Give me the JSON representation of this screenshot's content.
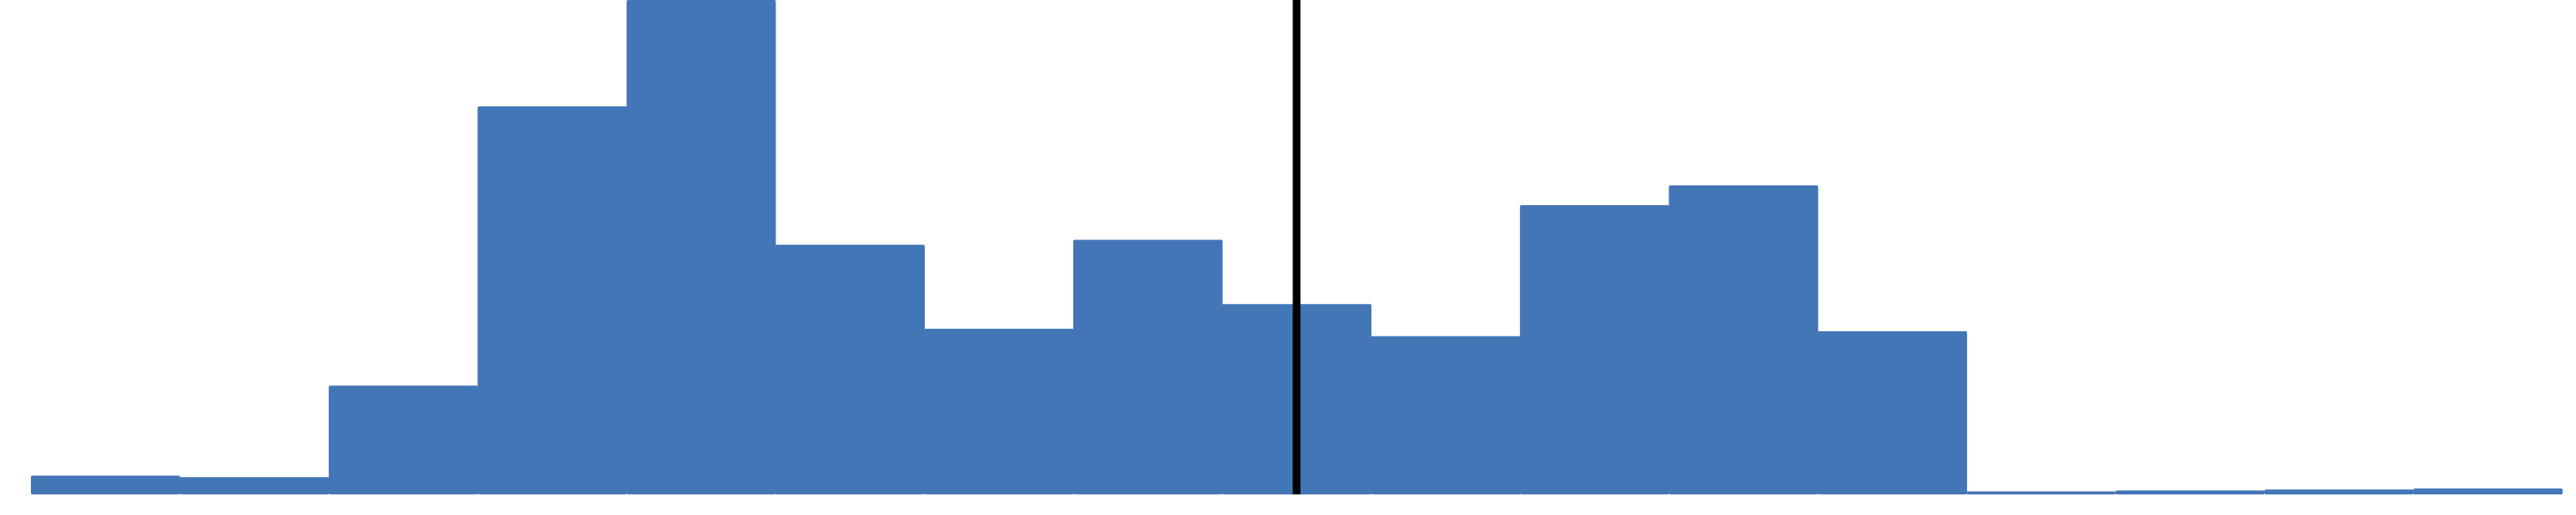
{
  "chart_data": {
    "type": "bar",
    "title": "",
    "xlabel": "",
    "ylabel": "",
    "values": [
      3.8,
      3.5,
      22.0,
      78.5,
      100,
      50.5,
      33.5,
      51.5,
      38.5,
      32.0,
      58.5,
      62.5,
      33.0,
      0.6,
      0.8,
      1.0,
      1.2
    ],
    "ylim": [
      0,
      100
    ],
    "grid": false,
    "legend": "none",
    "marker_bin": 8.5,
    "colors": {
      "bar": "#4276B7",
      "marker": "#000000"
    }
  }
}
